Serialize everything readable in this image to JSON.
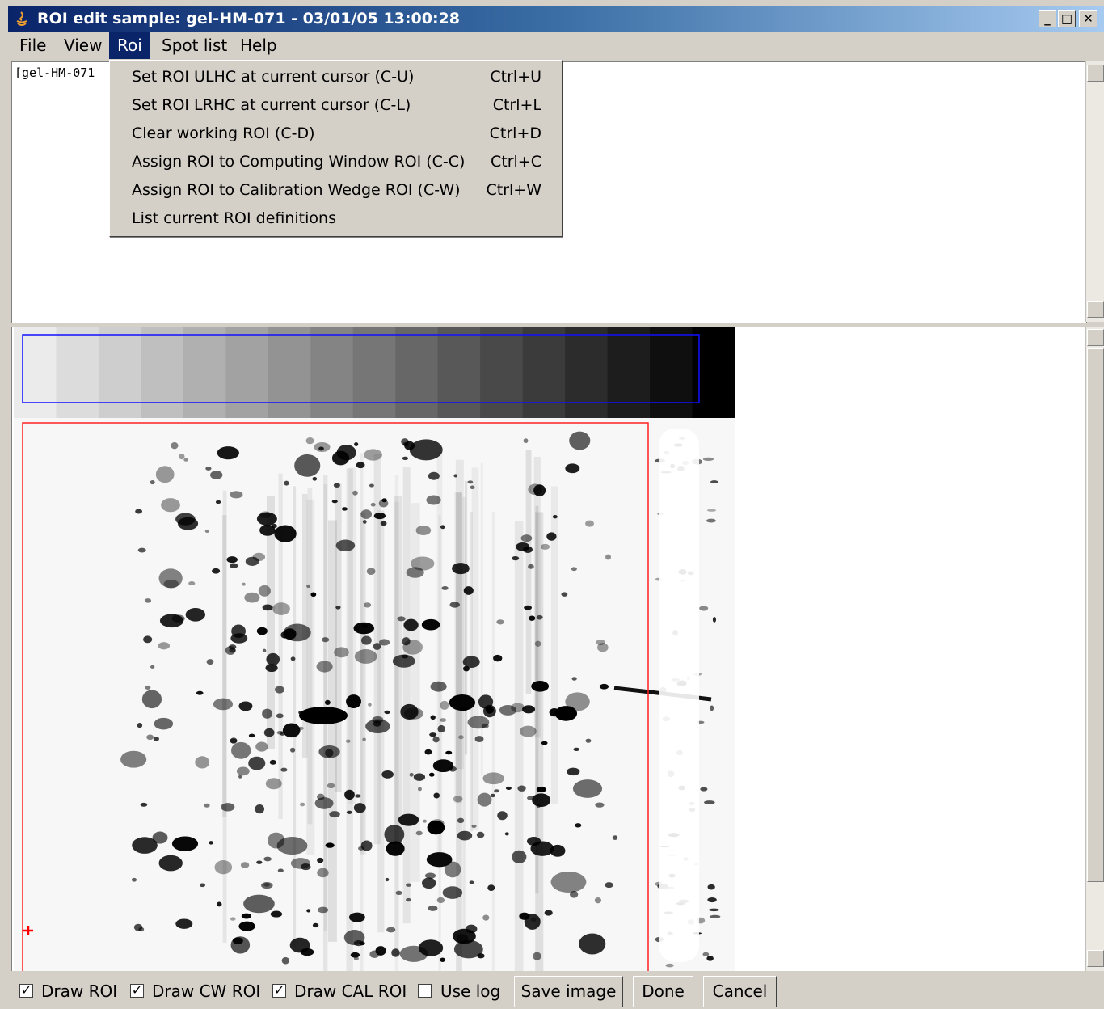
{
  "window": {
    "title": "ROI edit sample: gel-HM-071 - 03/01/05 13:00:28"
  },
  "menu_bar": {
    "items": [
      "File",
      "View",
      "Roi",
      "Spot list",
      "Help"
    ],
    "active": 2
  },
  "text_pane": {
    "text": "[gel-HM-071"
  },
  "roi_menu": {
    "items": [
      {
        "label": "Set ROI ULHC at current cursor (C-U)",
        "shortcut": "Ctrl+U"
      },
      {
        "label": "Set ROI LRHC at current cursor (C-L)",
        "shortcut": "Ctrl+L"
      },
      {
        "label": "Clear working ROI (C-D)",
        "shortcut": "Ctrl+D"
      },
      {
        "label": "Assign ROI to Computing Window ROI (C-C)",
        "shortcut": "Ctrl+C"
      },
      {
        "label": "Assign ROI to Calibration Wedge ROI (C-W)",
        "shortcut": "Ctrl+W"
      },
      {
        "label": "List current ROI definitions"
      }
    ]
  },
  "options": [
    {
      "label": "Draw ROI",
      "checked": true
    },
    {
      "label": "Draw CW ROI",
      "checked": true
    },
    {
      "label": "Draw CAL ROI",
      "checked": true
    },
    {
      "label": "Use log",
      "checked": false
    }
  ],
  "buttons": [
    "Save image",
    "Done",
    "Cancel"
  ]
}
